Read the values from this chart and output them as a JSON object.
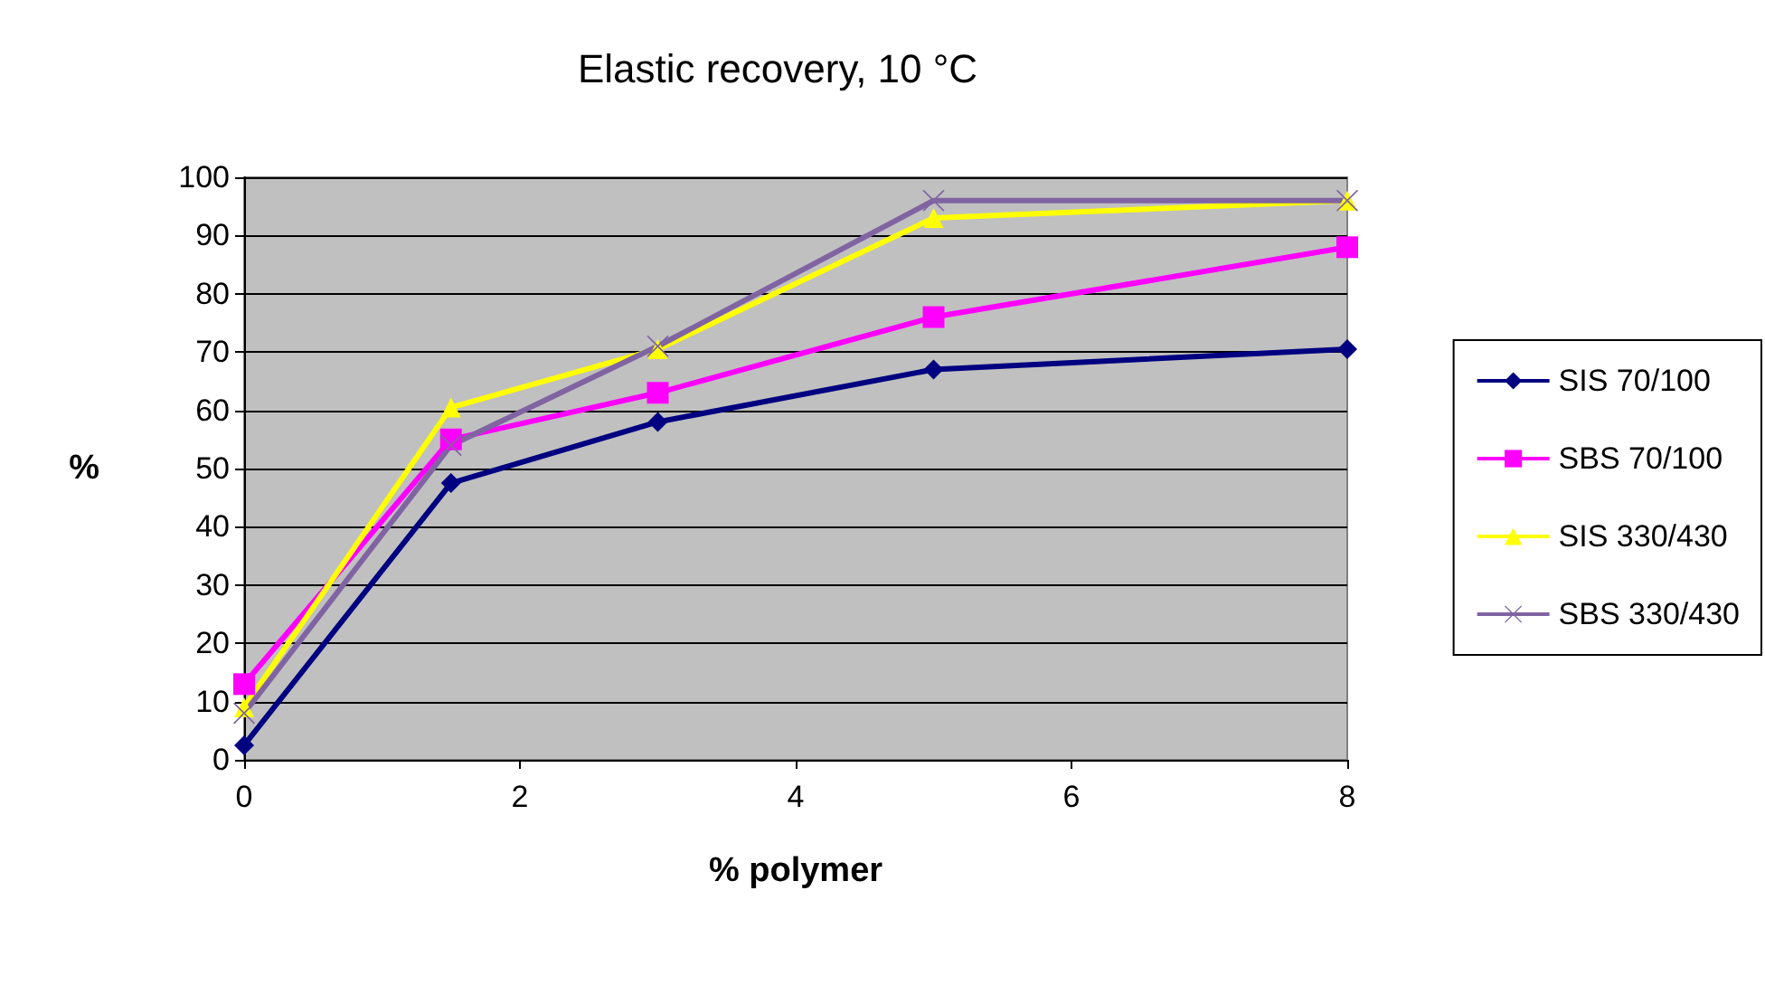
{
  "chart_data": {
    "type": "line",
    "title": "Elastic recovery, 10 °C",
    "xlabel": "% polymer",
    "ylabel": "%",
    "x": [
      0,
      1.5,
      3,
      5,
      8
    ],
    "series": [
      {
        "name": "SIS 70/100",
        "color": "#000080",
        "marker": "diamond",
        "values": [
          2.5,
          47.5,
          58,
          67,
          70.5
        ]
      },
      {
        "name": "SBS 70/100",
        "color": "#ff00ff",
        "marker": "square",
        "values": [
          13,
          55,
          63,
          76,
          88
        ]
      },
      {
        "name": "SIS 330/430",
        "color": "#ffff00",
        "marker": "triangle",
        "values": [
          9,
          60.5,
          70.5,
          93,
          96
        ]
      },
      {
        "name": "SBS 330/430",
        "color": "#8064a2",
        "marker": "cross",
        "values": [
          8,
          54,
          71,
          96,
          96
        ]
      }
    ],
    "xlim": [
      0,
      8
    ],
    "xticks": [
      0,
      2,
      4,
      6,
      8
    ],
    "ylim": [
      0,
      100
    ],
    "yticks": [
      0,
      10,
      20,
      30,
      40,
      50,
      60,
      70,
      80,
      90,
      100
    ],
    "grid": "y",
    "legend": "right"
  }
}
